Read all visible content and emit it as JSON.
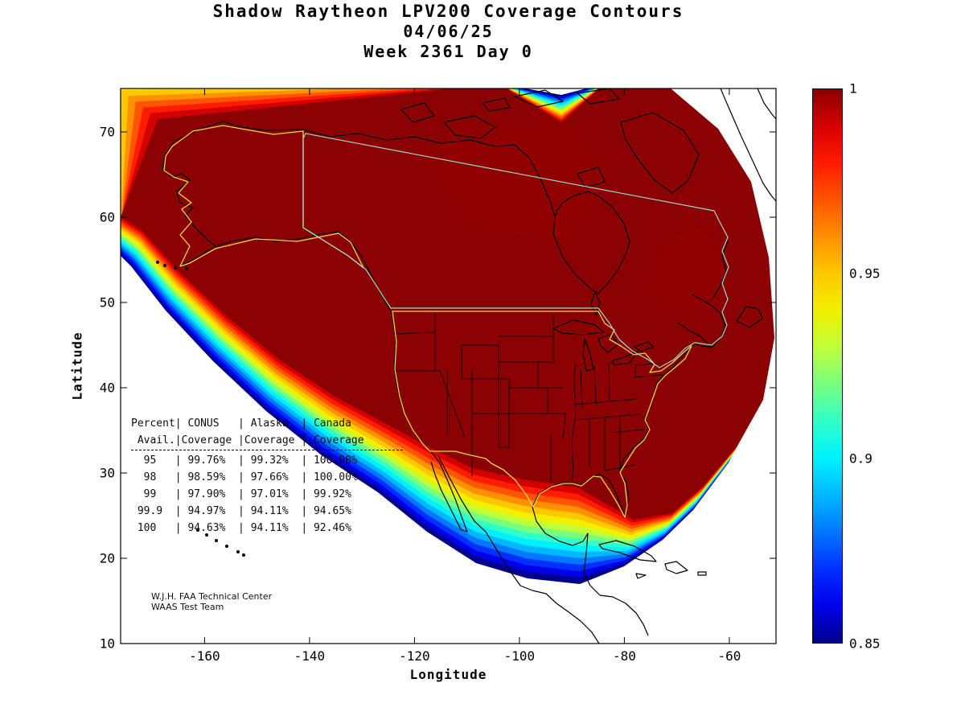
{
  "title": {
    "line1": "Shadow Raytheon LPV200 Coverage Contours",
    "line2": "04/06/25",
    "line3": "Week 2361 Day 0"
  },
  "axes": {
    "xlabel": "Longitude",
    "ylabel": "Latitude",
    "x_ticks": [
      "-160",
      "-140",
      "-120",
      "-100",
      "-80",
      "-60"
    ],
    "y_ticks": [
      "10",
      "20",
      "30",
      "40",
      "50",
      "60",
      "70"
    ]
  },
  "colorbar": {
    "ticks": [
      "1",
      "0.95",
      "0.9",
      "0.85"
    ],
    "min": 0.85,
    "max": 1,
    "colormap": "jet",
    "band_colors": [
      "#00008F",
      "#0000E8",
      "#0030FF",
      "#0078FF",
      "#00B8FF",
      "#00F0FF",
      "#30FFC8",
      "#78FF80",
      "#C0FF38",
      "#F0F000",
      "#FFC800",
      "#FF9000",
      "#FF5400",
      "#FF1C00",
      "#D40000"
    ],
    "core_color": "#8B0000"
  },
  "map_colors": {
    "coastline": "#000000",
    "state_lines": "#000000",
    "alaska_conus_outline": "#E9D94F",
    "canada_outline": "#9ADBD2"
  },
  "table": {
    "lines": [
      "Percent| CONUS   | Alaska  | Canada",
      " Avail.|Coverage |Coverage | Coverage",
      "  95   | 99.76%  | 99.32%  | 100.00%",
      "  98   | 98.59%  | 97.66%  | 100.00%",
      "  99   | 97.90%  | 97.01%  | 99.92%",
      " 99.9  | 94.97%  | 94.11%  | 94.65%",
      " 100   | 94.63%  | 94.11%  | 92.46%"
    ]
  },
  "credit": {
    "line1": "W.J.H. FAA Technical Center",
    "line2": "WAAS Test Team"
  },
  "chart_data": {
    "type": "heatmap",
    "subtype": "filled-contour-coverage-map",
    "title": "Shadow Raytheon LPV200 Coverage Contours",
    "subtitle": "04/06/25",
    "subtitle2": "Week 2361 Day 0",
    "xlabel": "Longitude",
    "ylabel": "Latitude",
    "xlim": [
      -175,
      -50
    ],
    "ylim": [
      10,
      75
    ],
    "x_ticks": [
      -160,
      -140,
      -120,
      -100,
      -80,
      -60
    ],
    "y_ticks": [
      10,
      20,
      30,
      40,
      50,
      60,
      70
    ],
    "colorbar": {
      "range": [
        0.85,
        1
      ],
      "tick_values": [
        1,
        0.95,
        0.9,
        0.85
      ],
      "colormap": "jet",
      "orientation": "vertical-right"
    },
    "content_note": "Dark red core (availability = 1) covers Alaska, Canada and CONUS; rainbow fringe bands decrease to 0.85 along the Pacific southwest edge, Mexico/Caribbean south edge and Atlantic east edge.",
    "coverage_table": {
      "columns": [
        "Percent Avail.",
        "CONUS Coverage",
        "Alaska Coverage",
        "Canada Coverage"
      ],
      "rows": [
        [
          "95",
          "99.76%",
          "99.32%",
          "100.00%"
        ],
        [
          "98",
          "98.59%",
          "97.66%",
          "100.00%"
        ],
        [
          "99",
          "97.90%",
          "97.01%",
          "99.92%"
        ],
        [
          "99.9",
          "94.97%",
          "94.11%",
          "94.65%"
        ],
        [
          "100",
          "94.63%",
          "94.11%",
          "92.46%"
        ]
      ]
    }
  }
}
